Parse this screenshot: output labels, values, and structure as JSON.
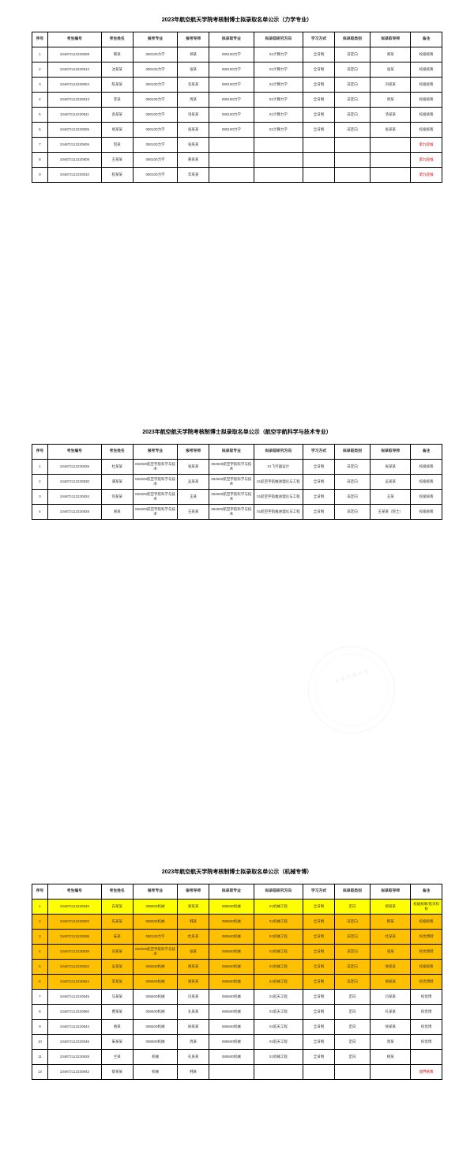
{
  "tables": [
    {
      "title": "2023年航空航天学院考核制博士拟录取名单公示（力学专业）",
      "headers": [
        "序号",
        "考生编号",
        "考生姓名",
        "报考专业",
        "报考导师",
        "拟录取专业",
        "拟录取研究方向",
        "学习方式",
        "拟录取类别",
        "拟录取导师",
        "备注"
      ],
      "rows": [
        {
          "cells": [
            "1",
            "104872112220808",
            "韩某",
            "080100力学",
            "郑某",
            "080100力学",
            "01计算力学",
            "全日制",
            "非定向",
            "郑某",
            "校级统筹"
          ]
        },
        {
          "cells": [
            "2",
            "104872112220812",
            "沈某某",
            "080100力学",
            "张某",
            "080100力学",
            "01计算力学",
            "全日制",
            "非定向",
            "张某",
            "校级统筹"
          ]
        },
        {
          "cells": [
            "3",
            "104872112220804",
            "陈某某",
            "080100力学",
            "刘某某",
            "080100力学",
            "01计算力学",
            "全日制",
            "非定向",
            "刘某某",
            "校级统筹"
          ]
        },
        {
          "cells": [
            "4",
            "104872112220813",
            "李某",
            "080100力学",
            "周某",
            "080100力学",
            "01计算力学",
            "全日制",
            "非定向",
            "周某",
            "校级统筹"
          ]
        },
        {
          "cells": [
            "5",
            "104872112220811",
            "高某某",
            "080100力学",
            "汤某某",
            "080100力学",
            "01计算力学",
            "全日制",
            "非定向",
            "汤某某",
            "校级统筹"
          ]
        },
        {
          "cells": [
            "6",
            "104872112220805",
            "易某某",
            "080100力学",
            "张某某",
            "080100力学",
            "01计算力学",
            "全日制",
            "非定向",
            "张某某",
            "校级统筹"
          ]
        },
        {
          "cells": [
            "7",
            "104872112220806",
            "阮某",
            "080100力学",
            "张某某",
            "",
            "",
            "",
            "",
            "",
            "第九轮候"
          ],
          "noteRed": true
        },
        {
          "cells": [
            "8",
            "104872112220809",
            "王某某",
            "080100力学",
            "黄某某",
            "",
            "",
            "",
            "",
            "",
            "第九轮候"
          ],
          "noteRed": true
        },
        {
          "cells": [
            "9",
            "104872112220810",
            "程某某",
            "080100力学",
            "华某某",
            "",
            "",
            "",
            "",
            "",
            "第九轮候"
          ],
          "noteRed": true
        }
      ]
    },
    {
      "title": "2023年航空航天学院考核制博士拟录取名单公示（航空宇航科学与技术专业）",
      "headers": [
        "序号",
        "考生编号",
        "考生姓名",
        "报考专业",
        "报考导师",
        "拟录取专业",
        "拟录取研究方向",
        "学习方式",
        "拟录取类别",
        "拟录取导师",
        "备注"
      ],
      "rows": [
        {
          "cells": [
            "1",
            "104872112220826",
            "杜某某",
            "082500航空宇航科学与技术",
            "张某某",
            "082500航空宇航科学与技术",
            "01飞行器设计",
            "全日制",
            "非定向",
            "张某某",
            "校级统筹"
          ]
        },
        {
          "cells": [
            "2",
            "104872112220830",
            "谭某某",
            "082500航空宇航科学与技术",
            "吴某某",
            "082500航空宇航科学与技术",
            "01航空宇航推进理论与工程",
            "全日制",
            "非定向",
            "吴某某",
            "校级统筹"
          ]
        },
        {
          "cells": [
            "3",
            "104872112220834",
            "何某某",
            "082500航空宇航科学与技术",
            "王某",
            "082500航空宇航科学与技术",
            "01航空宇航推进理论与工程",
            "全日制",
            "非定向",
            "王某",
            "校级统筹"
          ]
        },
        {
          "cells": [
            "4",
            "104872112220828",
            "易某",
            "082500航空宇航科学与技术",
            "王某某",
            "082500航空宇航科学与技术",
            "01航空宇航推进理论与工程",
            "全日制",
            "非定向",
            "王某某（院士）",
            "校级统筹"
          ]
        }
      ]
    },
    {
      "title": "2023年航空航天学院考核制博士拟录取名单公示（机械专博）",
      "headers": [
        "序号",
        "考生编号",
        "考生姓名",
        "报考专业",
        "报考导师",
        "拟录取专业",
        "拟录取研究方向",
        "学习方式",
        "拟录取类别",
        "拟录取导师",
        "备注"
      ],
      "rows": [
        {
          "hl": "yellow",
          "cells": [
            "1",
            "104872112220840",
            "白某某",
            "085500机械",
            "郑某某",
            "085500机械",
            "01机械工程",
            "全日制",
            "定向",
            "郑某某",
            "校级统筹/航天科技"
          ]
        },
        {
          "hl": "orange",
          "cells": [
            "2",
            "104872112220820",
            "先某某",
            "085500机械",
            "韩某",
            "085500机械",
            "01机械工程",
            "全日制",
            "非定向",
            "韩某",
            "校级统筹"
          ]
        },
        {
          "hl": "orange",
          "cells": [
            "3",
            "104872112220836",
            "朱某",
            "080100力学",
            "杜某某",
            "085500机械",
            "01机械工程",
            "全日制",
            "非定向",
            "杜某某",
            "校优博转"
          ]
        },
        {
          "hl": "orange",
          "cells": [
            "4",
            "104872112220839",
            "刘某某",
            "082500航空宇航科学与技术",
            "张某",
            "085500机械",
            "01机械工程",
            "全日制",
            "非定向",
            "张某",
            "校优博转"
          ]
        },
        {
          "hl": "orange",
          "cells": [
            "5",
            "104872112220822",
            "吴某某",
            "085500机械",
            "谢某某",
            "085500机械",
            "01机械工程",
            "全日制",
            "非定向",
            "谢某某",
            "校级统筹"
          ]
        },
        {
          "hl": "orange",
          "cells": [
            "6",
            "104872112220824",
            "李某某",
            "085500机械",
            "谢某某",
            "085500机械",
            "01机械工程",
            "全日制",
            "非定向",
            "谢某某",
            "校优博转"
          ]
        },
        {
          "cells": [
            "7",
            "104872112220845",
            "马某某",
            "085500机械",
            "闫某某",
            "085500机械",
            "01航天工程",
            "全日制",
            "定向",
            "闫某某",
            "校优博"
          ]
        },
        {
          "cells": [
            "8",
            "104872112220850",
            "曹某某",
            "085500机械",
            "孔某某",
            "085500机械",
            "01航天工程",
            "全日制",
            "定向",
            "孔某某",
            "校优博"
          ]
        },
        {
          "cells": [
            "9",
            "104872112220844",
            "杨某",
            "085500机械",
            "徐某某",
            "085500机械",
            "01航天工程",
            "全日制",
            "定向",
            "徐某某",
            "校优博"
          ]
        },
        {
          "cells": [
            "10",
            "104872112220846",
            "朱某某",
            "085500机械",
            "周某",
            "085500机械",
            "01航天工程",
            "全日制",
            "定向",
            "周某",
            "校优博"
          ]
        },
        {
          "cells": [
            "11",
            "104872112220828",
            "兰某",
            "机械",
            "孔某某",
            "085500机械",
            "01机械工程",
            "全日制",
            "定向",
            "杨某",
            ""
          ],
          "noteRed": true
        },
        {
          "cells": [
            "12",
            "104872112220842",
            "蔡某某",
            "机械",
            "韩某",
            "",
            "",
            "",
            "",
            "",
            "放弃统筹"
          ],
          "noteRed": true
        }
      ]
    }
  ],
  "sealText": "大 家 扫 描 关 注"
}
